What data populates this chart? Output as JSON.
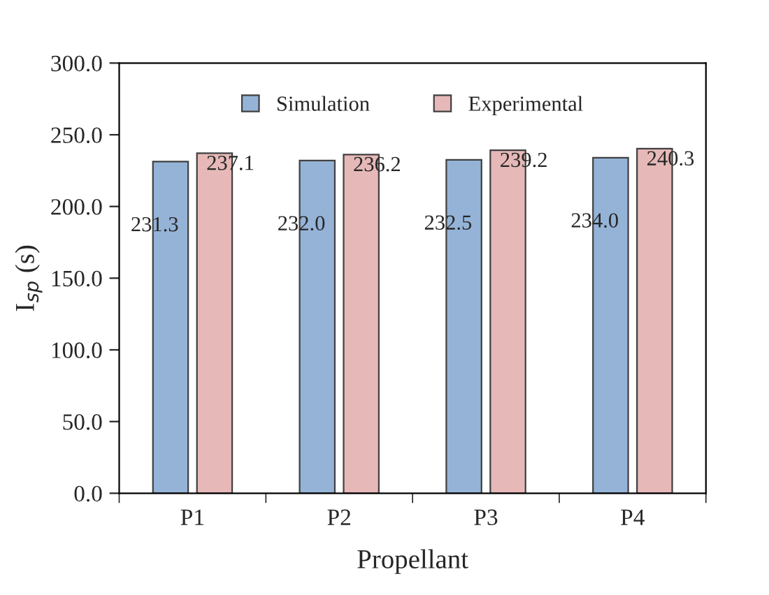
{
  "chart_data": {
    "type": "bar",
    "xlabel": "Propellant",
    "ylabel": "I$_{sp}$ (s)",
    "categories": [
      "P1",
      "P2",
      "P3",
      "P4"
    ],
    "series": [
      {
        "name": "Simulation",
        "color": "#95b3d7",
        "values": [
          231.3,
          232.0,
          232.5,
          234.0
        ],
        "value_labels": [
          "231.3",
          "232.0",
          "232.5",
          "234.0"
        ]
      },
      {
        "name": "Experimental",
        "color": "#e6b9b8",
        "values": [
          237.1,
          236.2,
          239.2,
          240.3
        ],
        "value_labels": [
          "237.1",
          "236.2",
          "239.2",
          "240.3"
        ]
      }
    ],
    "ylim": [
      0,
      300
    ],
    "yticks": [
      {
        "value": 0,
        "label": "0.0"
      },
      {
        "value": 50,
        "label": "50.0"
      },
      {
        "value": 100,
        "label": "100.0"
      },
      {
        "value": 150,
        "label": "150.0"
      },
      {
        "value": 200,
        "label": "200.0"
      },
      {
        "value": 250,
        "label": "250.0"
      },
      {
        "value": 300,
        "label": "300.0"
      }
    ],
    "legend": "top",
    "grid": false
  }
}
